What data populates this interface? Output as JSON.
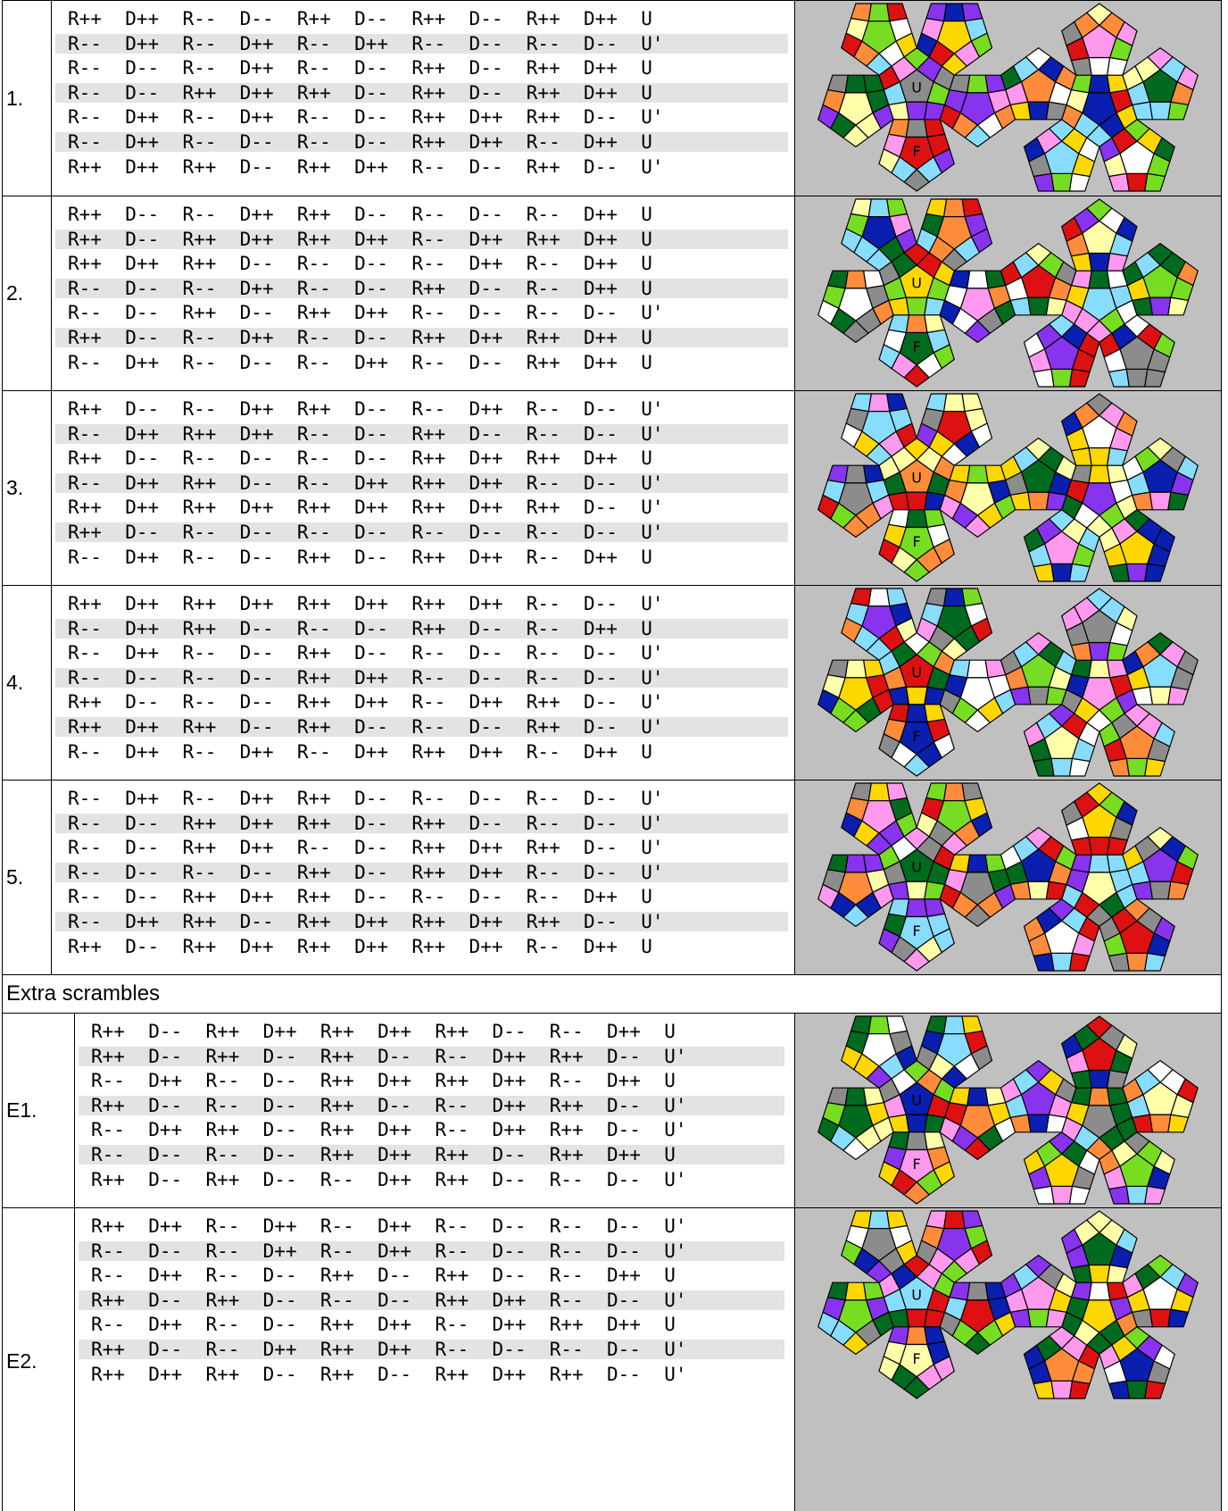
{
  "puzzles": [
    {
      "label": "1.",
      "lines": [
        "R++ D++ R-- D-- R++ D-- R++ D-- R++ D++ U",
        "R-- D++ R-- D++ R-- D++ R-- D-- R-- D-- U'",
        "R-- D-- R-- D++ R-- D-- R++ D-- R++ D++ U",
        "R-- D-- R++ D++ R++ D-- R++ D-- R++ D++ U",
        "R-- D++ R-- D++ R-- D-- R++ D++ R++ D-- U'",
        "R-- D++ R-- D-- R-- D-- R++ D++ R-- D++ U",
        "R++ D++ R++ D-- R++ D++ R-- D-- R++ D-- U'"
      ],
      "image_labels": [
        "U",
        "F"
      ]
    },
    {
      "label": "2.",
      "lines": [
        "R++ D-- R-- D++ R++ D-- R-- D-- R-- D++ U",
        "R++ D-- R++ D++ R++ D++ R-- D++ R++ D++ U",
        "R++ D++ R++ D-- R-- D-- R-- D++ R-- D++ U",
        "R-- D-- R-- D++ R-- D-- R++ D-- R-- D++ U",
        "R-- D-- R++ D-- R++ D++ R-- D-- R-- D-- U'",
        "R++ D-- R-- D++ R-- D-- R++ D++ R++ D++ U",
        "R-- D++ R-- D-- R-- D++ R-- D-- R++ D++ U"
      ],
      "image_labels": [
        "U",
        "F"
      ]
    },
    {
      "label": "3.",
      "lines": [
        "R++ D-- R-- D++ R++ D-- R-- D++ R-- D-- U'",
        "R-- D++ R++ D++ R-- D-- R++ D-- R-- D-- U'",
        "R++ D-- R-- D-- R-- D-- R++ D++ R++ D++ U",
        "R-- D++ R++ D-- R-- D++ R++ D++ R-- D-- U'",
        "R++ D++ R++ D++ R++ D++ R++ D++ R++ D-- U'",
        "R++ D-- R-- D-- R-- D-- R-- D-- R-- D-- U'",
        "R-- D++ R-- D-- R++ D-- R++ D++ R-- D++ U"
      ],
      "image_labels": [
        "U",
        "F"
      ]
    },
    {
      "label": "4.",
      "lines": [
        "R++ D++ R++ D++ R++ D++ R++ D++ R-- D-- U'",
        "R-- D++ R++ D-- R-- D-- R++ D-- R-- D++ U",
        "R-- D++ R-- D-- R++ D-- R-- D-- R-- D-- U'",
        "R-- D-- R-- D-- R++ D++ R-- D-- R-- D-- U'",
        "R++ D-- R-- D-- R++ D++ R-- D++ R++ D-- U'",
        "R++ D++ R++ D-- R++ D-- R-- D-- R++ D-- U'",
        "R-- D++ R-- D++ R-- D++ R++ D++ R-- D++ U"
      ],
      "image_labels": [
        "U",
        "F"
      ]
    },
    {
      "label": "5.",
      "lines": [
        "R-- D++ R-- D++ R++ D-- R-- D-- R-- D-- U'",
        "R-- D-- R++ D++ R++ D-- R++ D-- R-- D-- U'",
        "R-- D-- R++ D++ R-- D-- R++ D++ R++ D-- U'",
        "R-- D-- R-- D-- R++ D-- R++ D++ R-- D-- U'",
        "R-- D-- R++ D++ R++ D-- R-- D-- R-- D++ U",
        "R-- D++ R++ D-- R++ D++ R++ D++ R++ D-- U'",
        "R++ D-- R++ D++ R++ D++ R++ D++ R-- D++ U"
      ],
      "image_labels": [
        "U",
        "F"
      ]
    }
  ],
  "extra_title": "Extra scrambles",
  "extras": [
    {
      "label": "E1.",
      "lines": [
        "R++ D-- R++ D++ R++ D++ R++ D-- R-- D++ U",
        "R++ D-- R++ D-- R++ D-- R-- D++ R++ D-- U'",
        "R-- D++ R-- D-- R++ D++ R++ D++ R-- D++ U",
        "R++ D-- R-- D-- R++ D-- R-- D++ R++ D-- U'",
        "R-- D++ R++ D-- R++ D++ R-- D++ R++ D-- U'",
        "R-- D-- R-- D-- R++ D++ R++ D-- R++ D++ U",
        "R++ D-- R++ D-- R-- D++ R++ D-- R-- D-- U'"
      ],
      "image_labels": [
        "U",
        "F"
      ]
    },
    {
      "label": "E2.",
      "lines": [
        "R++ D++ R-- D++ R-- D++ R-- D-- R-- D-- U'",
        "R-- D-- R-- D++ R-- D++ R-- D-- R-- D-- U'",
        "R-- D++ R-- D-- R++ D-- R++ D-- R-- D++ U",
        "R++ D-- R++ D-- R-- D-- R++ D++ R-- D-- U'",
        "R-- D++ R-- D-- R++ D++ R-- D++ R++ D++ U",
        "R++ D-- R-- D++ R++ D++ R-- D-- R-- D-- U'",
        "R++ D++ R++ D-- R++ D-- R++ D++ R++ D-- U'"
      ],
      "image_labels": [
        "U",
        "F"
      ]
    }
  ]
}
